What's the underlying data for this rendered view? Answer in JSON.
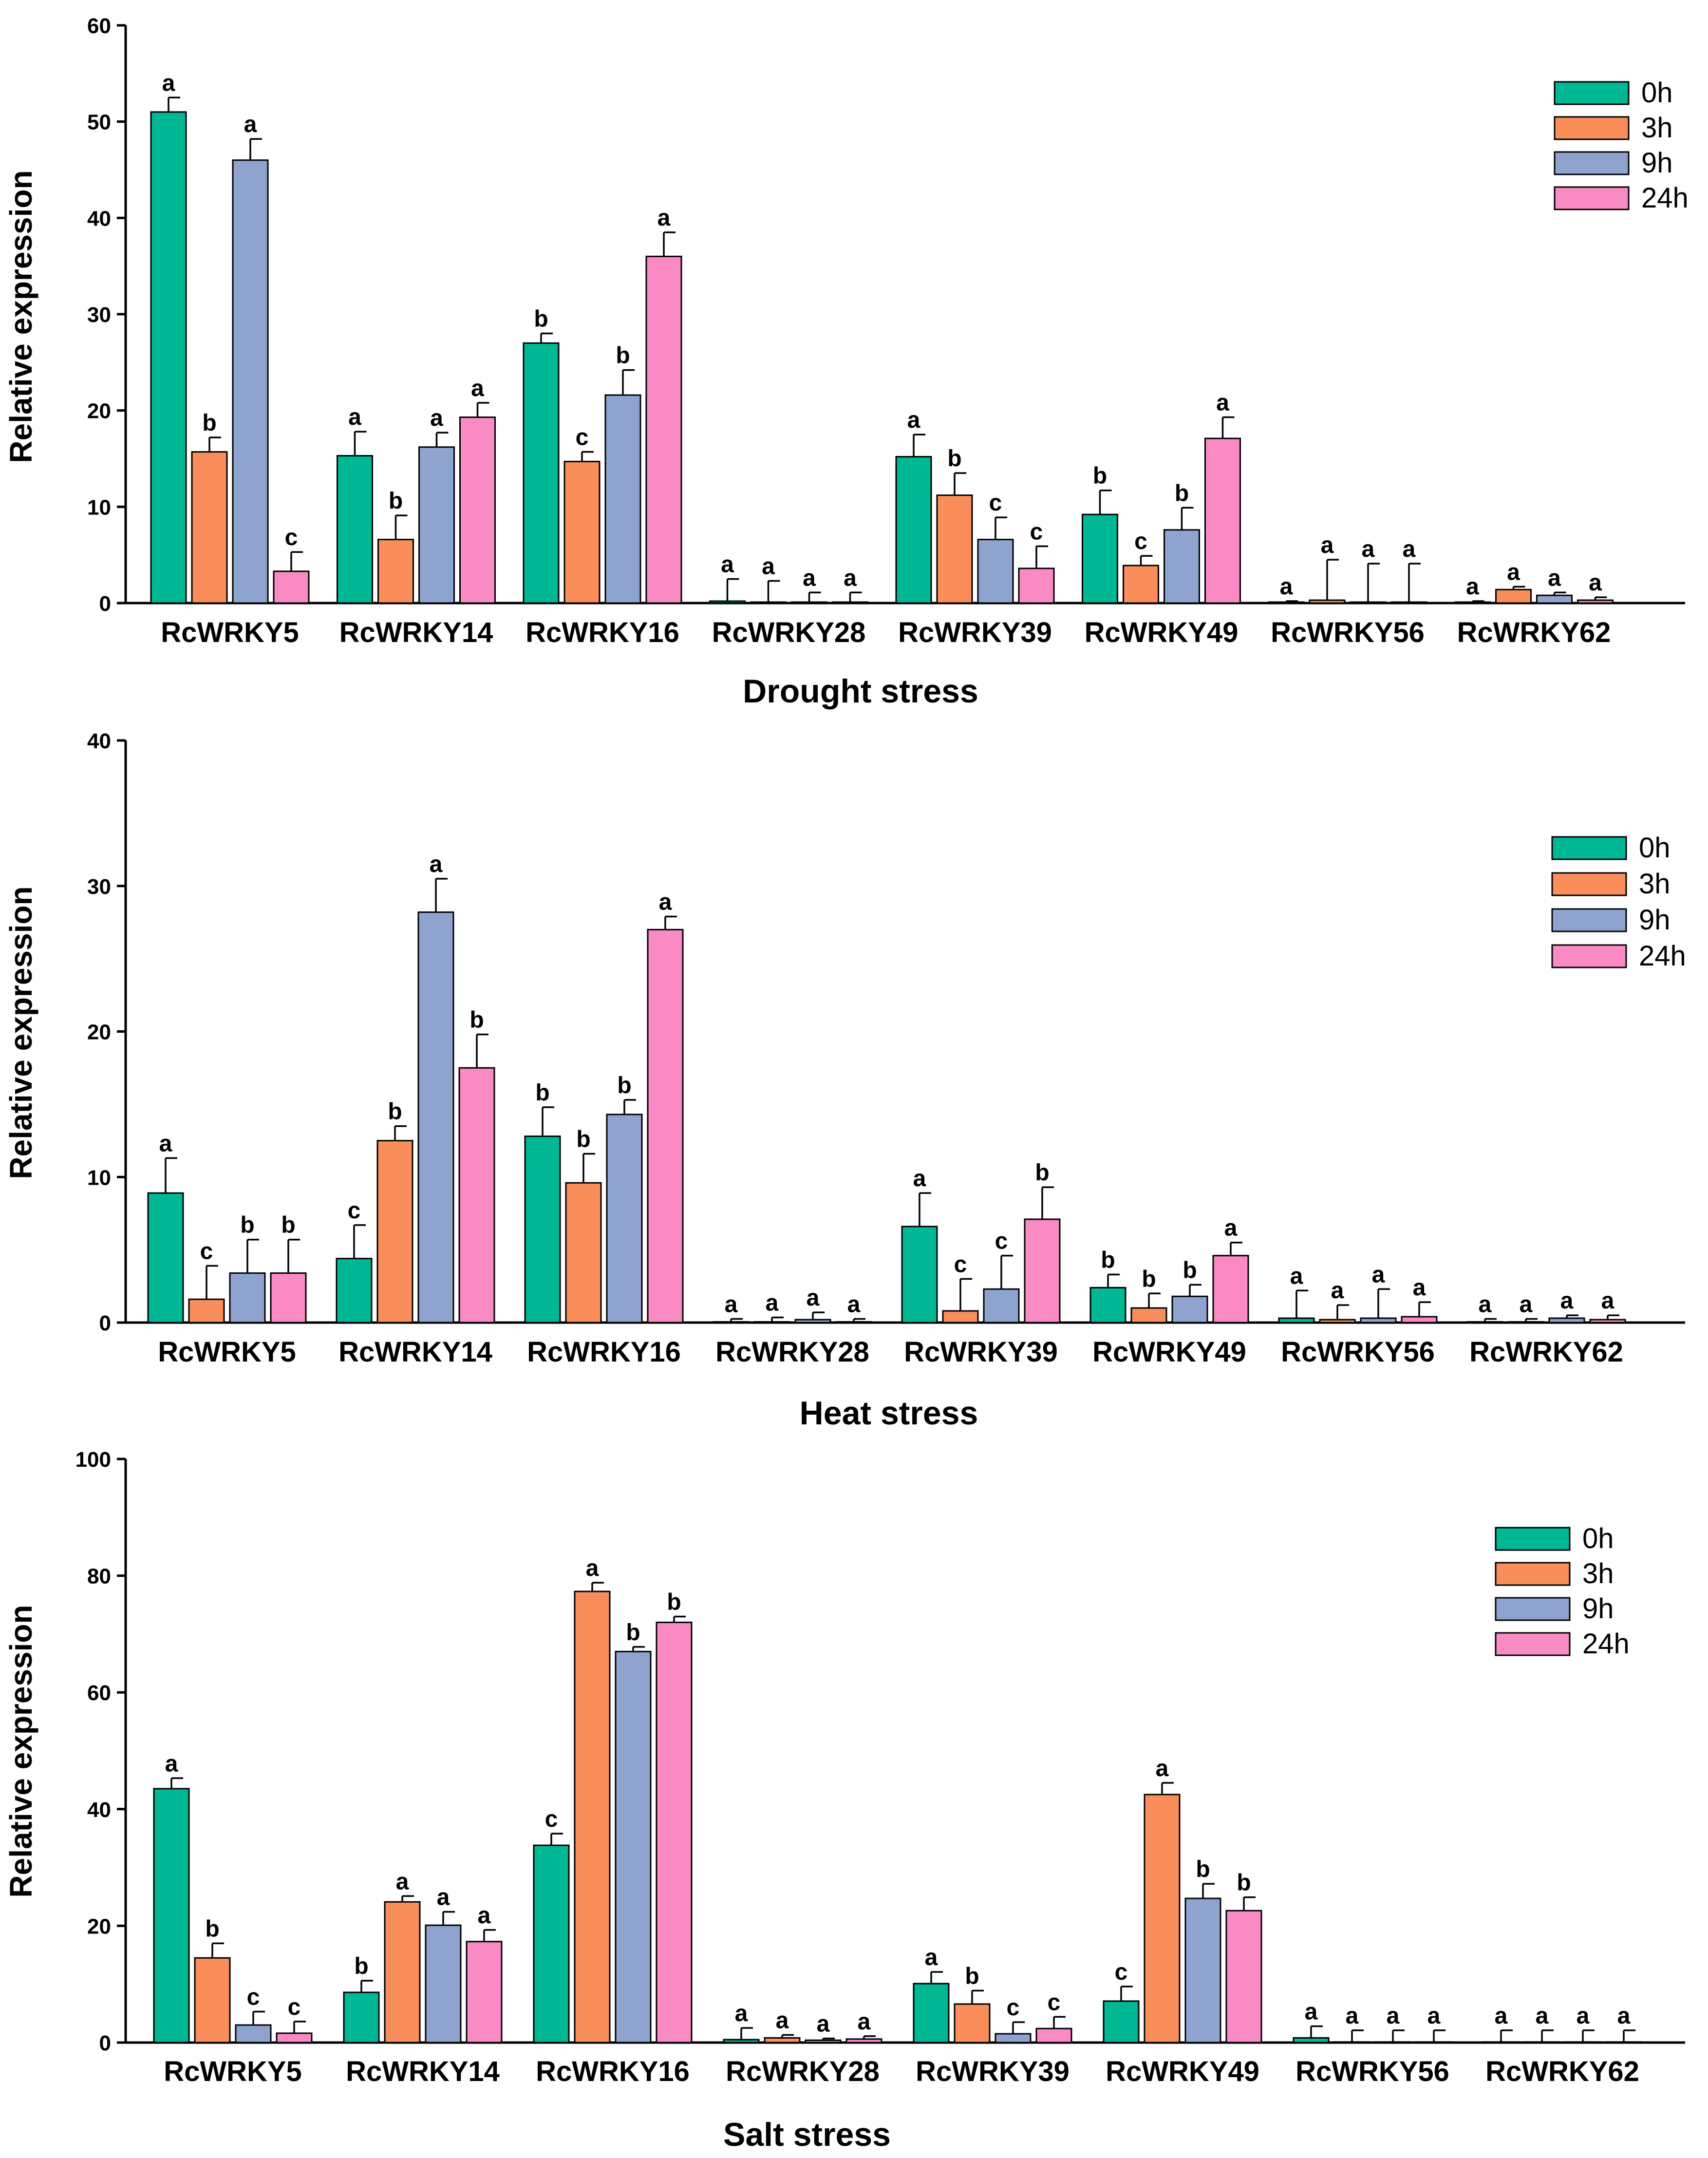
{
  "colors": {
    "0h": "#00B894",
    "3h": "#F98E5A",
    "9h": "#8FA3CF",
    "24h": "#F98AC3"
  },
  "chart_data": [
    {
      "type": "bar",
      "title": "Drought stress",
      "xlabel": "Drought stress",
      "ylabel": "Relative expression",
      "ylim": [
        0,
        60
      ],
      "yticks": [
        0,
        10,
        20,
        30,
        40,
        50,
        60
      ],
      "legend_position": "top-right",
      "categories": [
        "RcWRKY5",
        "RcWRKY14",
        "RcWRKY16",
        "RcWRKY28",
        "RcWRKY39",
        "RcWRKY49",
        "RcWRKY56",
        "RcWRKY62"
      ],
      "series": [
        {
          "name": "0h",
          "values": [
            51,
            15.3,
            27,
            0.2,
            15.2,
            9.2,
            0.1,
            0.1
          ],
          "errors": [
            1.5,
            2.5,
            1,
            2.3,
            2.3,
            2.5,
            0.1,
            0.1
          ],
          "letters": [
            "a",
            "a",
            "b",
            "a",
            "a",
            "b",
            "a",
            "a"
          ]
        },
        {
          "name": "3h",
          "values": [
            15.7,
            6.6,
            14.7,
            0.1,
            11.2,
            3.9,
            0.3,
            1.4
          ],
          "errors": [
            1.5,
            2.5,
            1,
            2.2,
            2.3,
            1,
            4.2,
            0.3
          ],
          "letters": [
            "b",
            "b",
            "c",
            "a",
            "b",
            "c",
            "a",
            "a"
          ]
        },
        {
          "name": "9h",
          "values": [
            46,
            16.2,
            21.6,
            0.1,
            6.6,
            7.6,
            0.1,
            0.8
          ],
          "errors": [
            2.2,
            1.5,
            2.6,
            1,
            2.3,
            2.3,
            4,
            0.3
          ],
          "letters": [
            "a",
            "a",
            "b",
            "a",
            "c",
            "b",
            "a",
            "a"
          ]
        },
        {
          "name": "24h",
          "values": [
            3.3,
            19.3,
            36,
            0.1,
            3.6,
            17.1,
            0.1,
            0.3
          ],
          "errors": [
            2,
            1.5,
            2.5,
            1,
            2.3,
            2.2,
            4,
            0.3
          ],
          "letters": [
            "c",
            "a",
            "a",
            "a",
            "c",
            "a",
            "a",
            "a"
          ]
        }
      ]
    },
    {
      "type": "bar",
      "title": "Heat stress",
      "xlabel": "Heat stress",
      "ylabel": "Relative expression",
      "ylim": [
        0,
        40
      ],
      "yticks": [
        0,
        10,
        20,
        30,
        40
      ],
      "legend_position": "top-right",
      "categories": [
        "RcWRKY5",
        "RcWRKY14",
        "RcWRKY16",
        "RcWRKY28",
        "RcWRKY39",
        "RcWRKY49",
        "RcWRKY56",
        "RcWRKY62"
      ],
      "series": [
        {
          "name": "0h",
          "values": [
            8.9,
            4.4,
            12.8,
            0.05,
            6.6,
            2.4,
            0.3,
            0.05
          ],
          "errors": [
            2.4,
            2.3,
            2,
            0.2,
            2.3,
            0.9,
            1.9,
            0.2
          ],
          "letters": [
            "a",
            "c",
            "b",
            "a",
            "a",
            "b",
            "a",
            "a"
          ]
        },
        {
          "name": "3h",
          "values": [
            1.6,
            12.5,
            9.6,
            0.05,
            0.8,
            1,
            0.2,
            0.05
          ],
          "errors": [
            2.3,
            1,
            2,
            0.3,
            2.2,
            1,
            1,
            0.2
          ],
          "letters": [
            "c",
            "b",
            "b",
            "a",
            "c",
            "b",
            "a",
            "a"
          ]
        },
        {
          "name": "9h",
          "values": [
            3.4,
            28.2,
            14.3,
            0.2,
            2.3,
            1.8,
            0.3,
            0.3
          ],
          "errors": [
            2.3,
            2.3,
            1,
            0.5,
            2.3,
            0.8,
            2,
            0.2
          ],
          "letters": [
            "b",
            "a",
            "b",
            "a",
            "c",
            "b",
            "a",
            "a"
          ]
        },
        {
          "name": "24h",
          "values": [
            3.4,
            17.5,
            27,
            0.05,
            7.1,
            4.6,
            0.4,
            0.2
          ],
          "errors": [
            2.3,
            2.3,
            0.9,
            0.2,
            2.2,
            0.9,
            1,
            0.3
          ],
          "letters": [
            "b",
            "b",
            "a",
            "a",
            "b",
            "a",
            "a",
            "a"
          ]
        }
      ]
    },
    {
      "type": "bar",
      "title": "Salt stress",
      "xlabel": "Salt stress",
      "ylabel": "Relative expression",
      "ylim": [
        0,
        100
      ],
      "yticks": [
        0,
        20,
        40,
        60,
        80,
        100
      ],
      "legend_position": "top-right",
      "categories": [
        "RcWRKY5",
        "RcWRKY14",
        "RcWRKY16",
        "RcWRKY28",
        "RcWRKY39",
        "RcWRKY49",
        "RcWRKY56",
        "RcWRKY62"
      ],
      "series": [
        {
          "name": "0h",
          "values": [
            43.5,
            8.6,
            33.8,
            0.5,
            10.1,
            7.1,
            0.8,
            0.1
          ],
          "errors": [
            1.8,
            2,
            2,
            2,
            2,
            2.5,
            2,
            2
          ],
          "letters": [
            "a",
            "b",
            "c",
            "a",
            "a",
            "c",
            "a",
            "a"
          ]
        },
        {
          "name": "3h",
          "values": [
            14.5,
            24.1,
            77.3,
            0.8,
            6.6,
            42.5,
            0.1,
            0.1
          ],
          "errors": [
            2.5,
            1,
            1.5,
            0.5,
            2.3,
            2,
            2,
            2
          ],
          "letters": [
            "b",
            "a",
            "a",
            "a",
            "b",
            "a",
            "a",
            "a"
          ]
        },
        {
          "name": "9h",
          "values": [
            3,
            20.1,
            67,
            0.4,
            1.5,
            24.7,
            0.1,
            0.1
          ],
          "errors": [
            2.3,
            2.3,
            0.8,
            0.3,
            2,
            2.5,
            2,
            2
          ],
          "letters": [
            "c",
            "a",
            "b",
            "a",
            "c",
            "b",
            "a",
            "a"
          ]
        },
        {
          "name": "24h",
          "values": [
            1.6,
            17.3,
            72,
            0.6,
            2.4,
            22.6,
            0.1,
            0.1
          ],
          "errors": [
            2,
            2,
            1,
            0.5,
            2,
            2.3,
            2,
            2
          ],
          "letters": [
            "c",
            "a",
            "b",
            "a",
            "c",
            "b",
            "a",
            "a"
          ]
        }
      ]
    }
  ]
}
